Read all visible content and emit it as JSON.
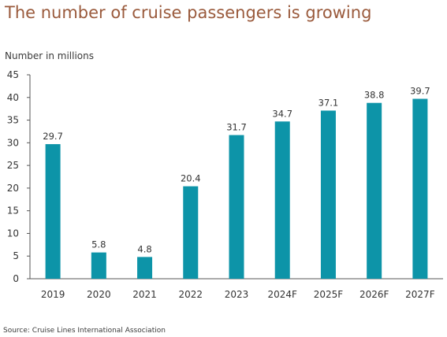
{
  "header": {
    "title": "The number of cruise passengers is growing"
  },
  "footer": {
    "source": "Source: Cruise Lines International Association"
  },
  "chart_data": {
    "type": "bar",
    "title": "The number of cruise passengers is growing",
    "ylabel": "Number in millions",
    "xlabel": "",
    "categories": [
      "2019",
      "2020",
      "2021",
      "2022",
      "2023",
      "2024F",
      "2025F",
      "2026F",
      "2027F"
    ],
    "values": [
      29.7,
      5.8,
      4.8,
      20.4,
      31.7,
      34.7,
      37.1,
      38.8,
      39.7
    ],
    "data_labels": [
      "29.7",
      "5.8",
      "4.8",
      "20.4",
      "31.7",
      "34.7",
      "37.1",
      "38.8",
      "39.7"
    ],
    "ylim": [
      0,
      45
    ],
    "yticks": [
      0,
      5,
      10,
      15,
      20,
      25,
      30,
      35,
      40,
      45
    ],
    "grid": false,
    "legend": "none",
    "bar_color": "#0d94a8",
    "axis_color": "#555555"
  }
}
